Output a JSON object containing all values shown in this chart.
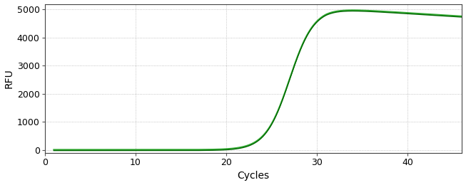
{
  "xlabel": "Cycles",
  "ylabel": "RFU",
  "xlim": [
    0,
    46
  ],
  "ylim": [
    -100,
    5200
  ],
  "xticks": [
    0,
    10,
    20,
    30,
    40
  ],
  "yticks": [
    0,
    1000,
    2000,
    3000,
    4000,
    5000
  ],
  "line_color_outer": "#33aa33",
  "line_color_inner": "#006600",
  "background_color": "#ffffff",
  "grid_color": "#aaaaaa",
  "sigmoid_L": 5050,
  "sigmoid_k": 0.75,
  "sigmoid_x0": 27.0,
  "decay_rate": 0.004,
  "decay_start": 31.0,
  "x_start": 1,
  "x_end": 46
}
